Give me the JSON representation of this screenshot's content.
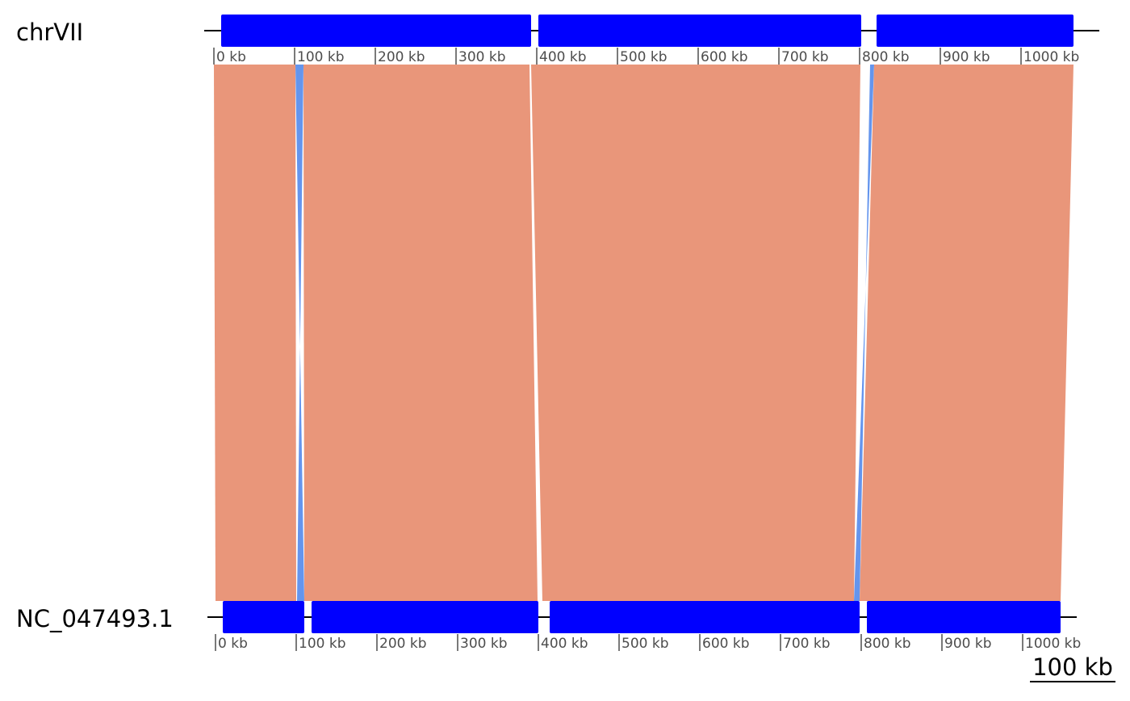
{
  "colors": {
    "contig": "#0000FF",
    "forward_link": "#E9967A",
    "inverted_link": "#6495ED",
    "axis": "#000000",
    "tick_label": "#4D4D4D"
  },
  "tracks": [
    {
      "name": "chrVII",
      "length_kb": 1065,
      "contigs_kb": [
        [
          0,
          393
        ],
        [
          393,
          802
        ],
        [
          812,
          1065
        ]
      ],
      "ticks_kb": [
        0,
        100,
        200,
        300,
        400,
        500,
        600,
        700,
        800,
        900,
        1000
      ],
      "tick_labels": [
        "0 kb",
        "100 kb",
        "200 kb",
        "300 kb",
        "400 kb",
        "500 kb",
        "600 kb",
        "700 kb",
        "800 kb",
        "900 kb",
        "1000 kb"
      ]
    },
    {
      "name": "NC_047493.1",
      "length_kb": 1047,
      "contigs_kb": [
        [
          0,
          110
        ],
        [
          110,
          400
        ],
        [
          405,
          798
        ],
        [
          798,
          1047
        ]
      ],
      "ticks_kb": [
        0,
        100,
        200,
        300,
        400,
        500,
        600,
        700,
        800,
        900,
        1000
      ],
      "tick_labels": [
        "0 kb",
        "100 kb",
        "200 kb",
        "300 kb",
        "400 kb",
        "500 kb",
        "600 kb",
        "700 kb",
        "800 kb",
        "900 kb",
        "1000 kb"
      ]
    }
  ],
  "links": [
    {
      "type": "forward",
      "top_kb": [
        0,
        101
      ],
      "bottom_kb": [
        0,
        100
      ]
    },
    {
      "type": "inverted",
      "top_kb": [
        101,
        111
      ],
      "bottom_kb": [
        101,
        110
      ]
    },
    {
      "type": "forward",
      "top_kb": [
        111,
        391
      ],
      "bottom_kb": [
        110,
        399
      ]
    },
    {
      "type": "forward",
      "top_kb": [
        393,
        801
      ],
      "bottom_kb": [
        405,
        791
      ]
    },
    {
      "type": "inverted",
      "top_kb": [
        813,
        818
      ],
      "bottom_kb": [
        791,
        798
      ]
    },
    {
      "type": "forward",
      "top_kb": [
        818,
        1065
      ],
      "bottom_kb": [
        798,
        1047
      ]
    }
  ],
  "scale_bar": {
    "label": "100 kb",
    "length_kb": 100
  }
}
